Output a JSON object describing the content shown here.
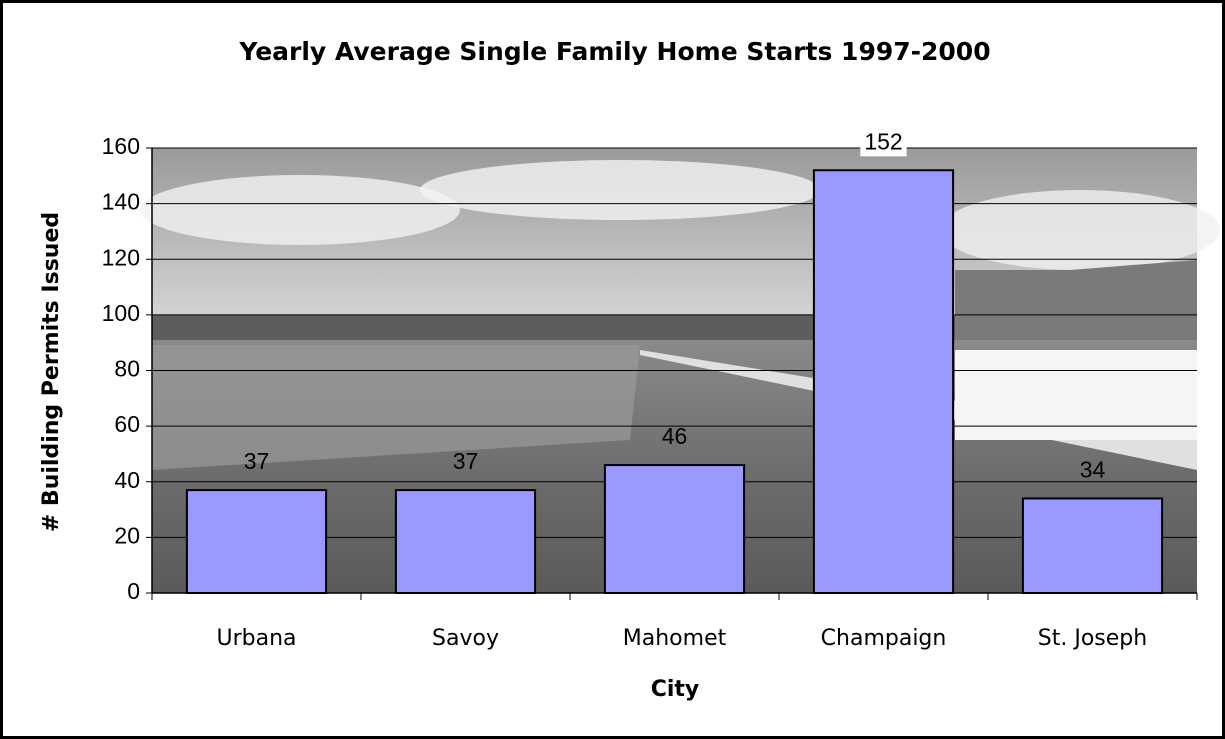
{
  "chart_data": {
    "type": "bar",
    "title": "Yearly Average Single Family Home Starts 1997-2000",
    "x_label": "City",
    "y_label": "# Building Permits Issued",
    "categories": [
      "Urbana",
      "Savoy",
      "Mahomet",
      "Champaign",
      "St. Joseph"
    ],
    "values": [
      37,
      37,
      46,
      152,
      34
    ],
    "color": "#9999ff",
    "ylim": [
      0,
      160
    ],
    "yticks": [
      0,
      20,
      40,
      60,
      80,
      100,
      120,
      140,
      160
    ],
    "grid": true,
    "data_labels": true
  }
}
